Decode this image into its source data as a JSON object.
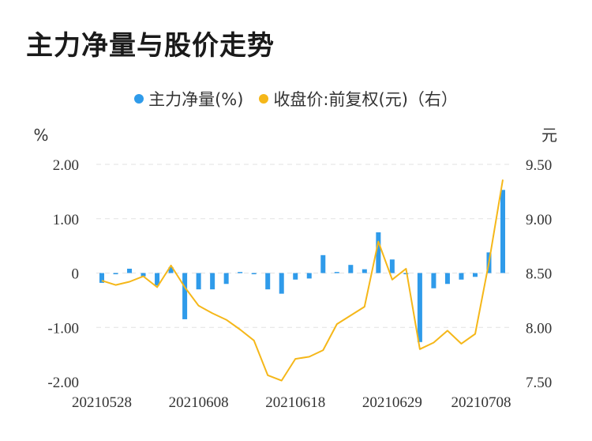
{
  "title": "主力净量与股价走势",
  "legend": {
    "bar_label": "主力净量(%)",
    "line_label": "收盘价:前复权(元)（右）"
  },
  "axis": {
    "left_unit": "%",
    "right_unit": "元"
  },
  "colors": {
    "bar": "#2f9bea",
    "line": "#f5b719",
    "grid": "#e2e2e2"
  },
  "chart_data": {
    "type": "bar",
    "title": "主力净量与股价走势",
    "x_tick_labels": [
      "20210528",
      "20210608",
      "20210618",
      "20210629",
      "20210708"
    ],
    "left_axis": {
      "label": "%",
      "ylim": [
        -2,
        2
      ],
      "ticks": [
        "2.00",
        "1.00",
        "0",
        "-1.00",
        "-2.00"
      ]
    },
    "right_axis": {
      "label": "元",
      "ylim": [
        7.5,
        9.5
      ],
      "ticks": [
        "9.50",
        "9.00",
        "8.50",
        "8.00",
        "7.50"
      ]
    },
    "grid": true,
    "legend_position": "top-center",
    "series": [
      {
        "name": "主力净量(%)",
        "type": "bar",
        "axis": "left",
        "values": [
          -0.18,
          -0.02,
          0.08,
          -0.06,
          -0.23,
          0.11,
          -0.85,
          -0.3,
          -0.3,
          -0.2,
          0.02,
          -0.02,
          -0.3,
          -0.38,
          -0.12,
          -0.1,
          0.33,
          0.02,
          0.15,
          0.07,
          0.75,
          0.25,
          -0.02,
          -1.27,
          -0.28,
          -0.2,
          -0.12,
          -0.07,
          0.38,
          1.53
        ]
      },
      {
        "name": "收盘价:前复权(元)（右）",
        "type": "line",
        "axis": "right",
        "values": [
          8.43,
          8.39,
          8.42,
          8.47,
          8.37,
          8.57,
          8.37,
          8.2,
          8.13,
          8.07,
          7.98,
          7.88,
          7.56,
          7.51,
          7.71,
          7.73,
          7.79,
          8.03,
          8.11,
          8.19,
          8.79,
          8.44,
          8.54,
          7.8,
          7.86,
          7.97,
          7.85,
          7.94,
          8.6,
          9.36
        ]
      }
    ]
  }
}
